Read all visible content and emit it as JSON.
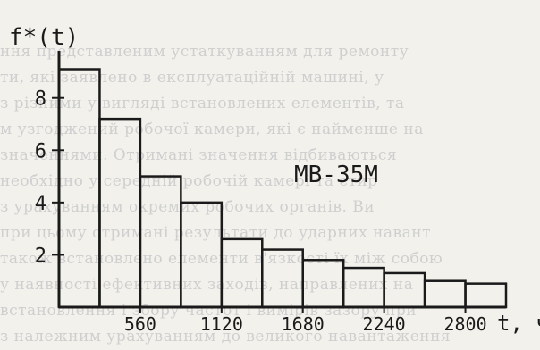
{
  "chart_data": {
    "type": "bar",
    "ylabel": "f*(t)",
    "xlabel": "t, ч",
    "annotation": "MB-35M",
    "xticks": [
      "560",
      "1120",
      "1680",
      "2240",
      "2800"
    ],
    "yticks": [
      "2",
      "4",
      "6",
      "8"
    ],
    "bin_edges": [
      0,
      280,
      560,
      840,
      1120,
      1400,
      1680,
      1960,
      2240,
      2520,
      2800,
      3080
    ],
    "values": [
      9.1,
      7.2,
      5.0,
      4.0,
      2.6,
      2.2,
      1.8,
      1.5,
      1.3,
      1.0,
      0.9
    ],
    "xlim": [
      0,
      3080
    ],
    "ylim": [
      0,
      9.8
    ],
    "grid": false,
    "colors": {
      "line": "#1a1a1a",
      "background": "#f2f1ec",
      "bg_text": "#cfcfcf"
    }
  },
  "background_text": [
    "ння представленим устаткуванням для ремонту",
    "ти, які заявлено в експлуатаційній машині, у",
    "з різними у вигляді встановлених елементів, та",
    "м узгоджений робочої камери, які є найменше на",
    "значеннями. Отримані значення відбиваються",
    "необхідно у середній робочій камері та стир",
    "з урахуванням окремих робочих органів. Ви",
    "при цьому отримані результати до ударних навант",
    "також встановлено елементи в'язкості їх між собою",
    "у наявності ефективних заходів, направлених на",
    "встановлення і збору частот і вимірів зазору при",
    "з належним урахуванням до великого навантаження"
  ]
}
